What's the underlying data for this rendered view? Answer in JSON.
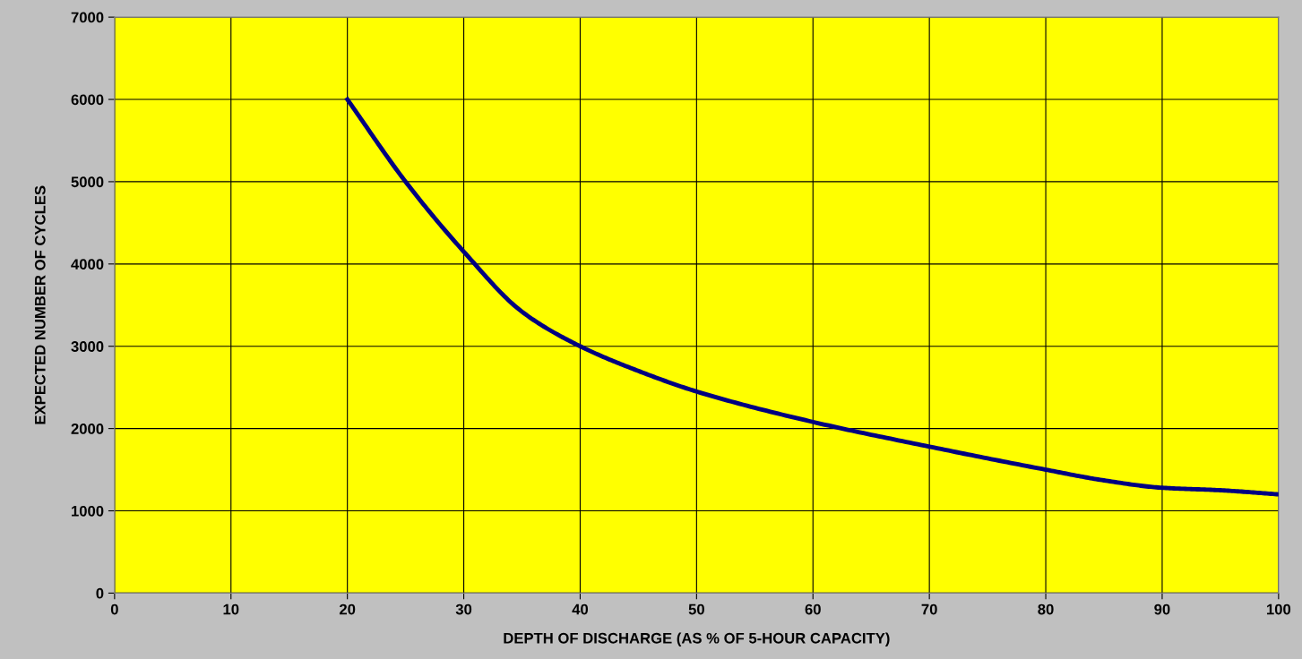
{
  "chart_data": {
    "type": "line",
    "xlabel": "DEPTH OF DISCHARGE (AS % OF 5-HOUR CAPACITY)",
    "ylabel": "EXPECTED NUMBER OF CYCLES",
    "x": [
      20,
      25,
      30,
      35,
      40,
      45,
      50,
      60,
      70,
      80,
      85,
      90,
      95,
      100
    ],
    "series": [
      {
        "color": "#000080",
        "values": [
          6000,
          5000,
          4150,
          3420,
          3000,
          2700,
          2450,
          2080,
          1780,
          1500,
          1370,
          1280,
          1250,
          1200
        ]
      }
    ],
    "xlim": [
      0,
      100
    ],
    "xticks": [
      0,
      10,
      20,
      30,
      40,
      50,
      60,
      70,
      80,
      90,
      100
    ],
    "ylim": [
      0,
      7000
    ],
    "yticks": [
      0,
      1000,
      2000,
      3000,
      4000,
      5000,
      6000,
      7000
    ],
    "grid": true,
    "marker": "none",
    "line_style": "solid"
  }
}
